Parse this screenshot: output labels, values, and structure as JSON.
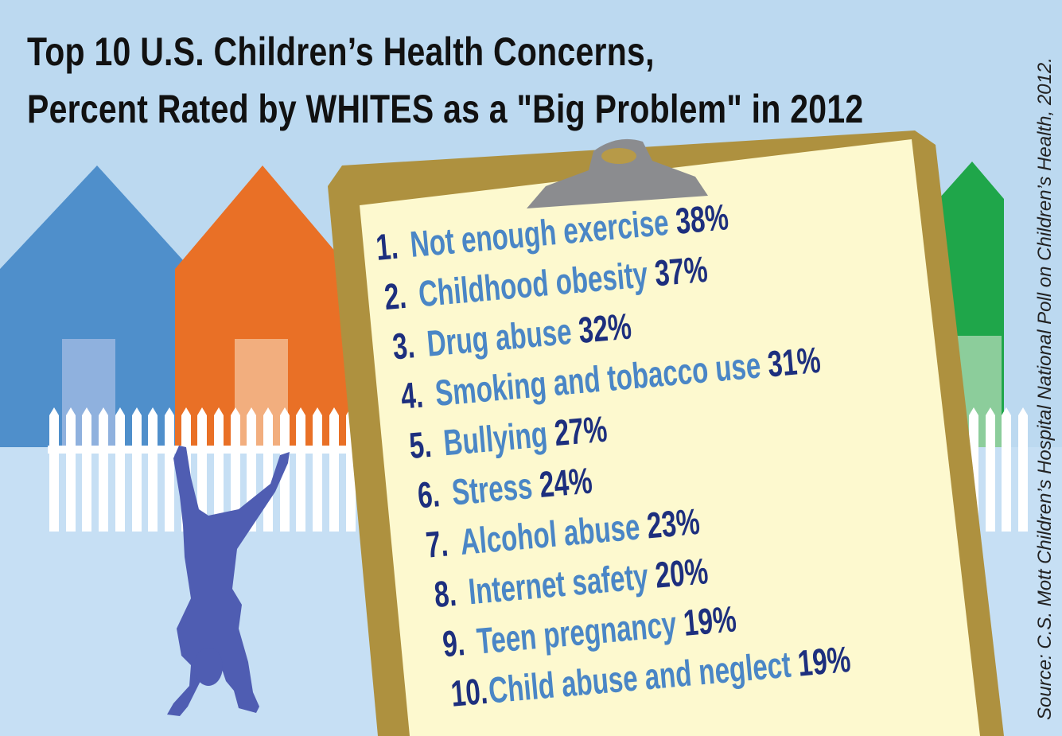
{
  "title_line1": "Top 10 U.S. Children’s Health Concerns,",
  "title_line2": "Percent Rated by WHITES as a \"Big Problem\" in 2012",
  "concerns": [
    {
      "rank": "1.",
      "label": "Not enough exercise",
      "percent": "38%"
    },
    {
      "rank": "2.",
      "label": "Childhood obesity",
      "percent": "37%"
    },
    {
      "rank": "3.",
      "label": "Drug abuse",
      "percent": "32%"
    },
    {
      "rank": "4.",
      "label": "Smoking and tobacco use",
      "percent": "31%"
    },
    {
      "rank": "5.",
      "label": "Bullying",
      "percent": "27%"
    },
    {
      "rank": "6.",
      "label": "Stress",
      "percent": "24%"
    },
    {
      "rank": "7.",
      "label": "Alcohol abuse",
      "percent": "23%"
    },
    {
      "rank": "8.",
      "label": "Internet safety",
      "percent": "20%"
    },
    {
      "rank": "9.",
      "label": "Teen pregnancy",
      "percent": "19%"
    },
    {
      "rank": "10.",
      "label": "Child abuse and neglect",
      "percent": "19%"
    }
  ],
  "source": "Source: C.S. Mott Children’s Hospital National Poll on Children’s Health, 2012.",
  "colors": {
    "background": "#bcd9f0",
    "house_blue": "#4f8fcb",
    "house_orange": "#e97026",
    "house_green": "#1fa64a",
    "clipboard_frame": "#ae913f",
    "paper": "#fdf9cf",
    "rank_and_percent": "#1d2f7e",
    "item_label": "#4a86c6",
    "child_silhouette": "#4f5db2"
  }
}
